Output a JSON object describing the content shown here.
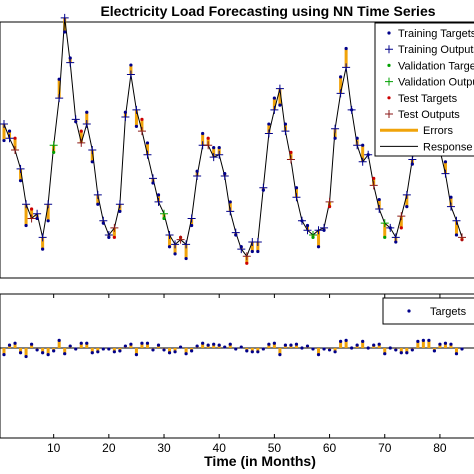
{
  "chart_data": [
    {
      "type": "line",
      "title": "Electricity Load Forecasting using NN Time Series",
      "xlim": [
        1,
        84
      ],
      "ylim": [
        0,
        1
      ],
      "grid": false,
      "legend_placement": "top-right",
      "colors": {
        "training_targets": "#00008B",
        "training_outputs": "#00008B",
        "validation_targets": "#00A000",
        "validation_outputs": "#00A000",
        "test_targets": "#CC0000",
        "test_outputs": "#8B1A1A",
        "errors": "#F0A30A",
        "response": "#000000"
      },
      "legend": [
        {
          "key": "training_targets",
          "label": "Training Targets",
          "marker": "dot"
        },
        {
          "key": "training_outputs",
          "label": "Training Outputs",
          "marker": "plus"
        },
        {
          "key": "validation_targets",
          "label": "Validation Targets",
          "marker": "dot"
        },
        {
          "key": "validation_outputs",
          "label": "Validation Outputs",
          "marker": "plus"
        },
        {
          "key": "test_targets",
          "label": "Test Targets",
          "marker": "dot"
        },
        {
          "key": "test_outputs",
          "label": "Test Outputs",
          "marker": "plus"
        },
        {
          "key": "errors",
          "label": "Errors",
          "marker": "thick-line"
        },
        {
          "key": "response",
          "label": "Response",
          "marker": "line"
        }
      ],
      "x": [
        1,
        2,
        3,
        4,
        5,
        6,
        7,
        8,
        9,
        10,
        11,
        12,
        13,
        14,
        15,
        16,
        17,
        18,
        19,
        20,
        21,
        22,
        23,
        24,
        25,
        26,
        27,
        28,
        29,
        30,
        31,
        32,
        33,
        34,
        35,
        36,
        37,
        38,
        39,
        40,
        41,
        42,
        43,
        44,
        45,
        46,
        47,
        48,
        49,
        50,
        51,
        52,
        53,
        54,
        55,
        56,
        57,
        58,
        59,
        60,
        61,
        62,
        63,
        64,
        65,
        66,
        67,
        68,
        69,
        70,
        71,
        72,
        73,
        74,
        75,
        76,
        77,
        78,
        79,
        80,
        81,
        82,
        83,
        84
      ],
      "series": [
        {
          "name": "Targets",
          "values": [
            0.54,
            0.58,
            0.55,
            0.37,
            0.18,
            0.25,
            0.21,
            0.08,
            0.2,
            0.49,
            0.8,
            1.0,
            0.89,
            0.62,
            0.58,
            0.66,
            0.45,
            0.27,
            0.19,
            0.13,
            0.13,
            0.24,
            0.66,
            0.86,
            0.6,
            0.63,
            0.53,
            0.36,
            0.31,
            0.21,
            0.09,
            0.06,
            0.13,
            0.04,
            0.18,
            0.41,
            0.57,
            0.55,
            0.51,
            0.51,
            0.4,
            0.28,
            0.14,
            0.09,
            0.02,
            0.07,
            0.07,
            0.33,
            0.61,
            0.72,
            0.69,
            0.61,
            0.49,
            0.34,
            0.2,
            0.18,
            0.13,
            0.09,
            0.16,
            0.26,
            0.55,
            0.81,
            0.93,
            0.67,
            0.55,
            0.52,
            0.48,
            0.38,
            0.29,
            0.13,
            0.17,
            0.11,
            0.17,
            0.26,
            0.44,
            0.67,
            0.76,
            0.78,
            0.62,
            0.54,
            0.45,
            0.3,
            0.14,
            0.12
          ]
        },
        {
          "name": "Outputs",
          "values": [
            0.61,
            0.55,
            0.5,
            0.42,
            0.27,
            0.21,
            0.23,
            0.13,
            0.27,
            0.52,
            0.72,
            1.06,
            0.87,
            0.63,
            0.53,
            0.61,
            0.5,
            0.31,
            0.2,
            0.14,
            0.17,
            0.27,
            0.64,
            0.82,
            0.67,
            0.58,
            0.48,
            0.38,
            0.28,
            0.23,
            0.14,
            0.1,
            0.12,
            0.1,
            0.21,
            0.39,
            0.52,
            0.52,
            0.47,
            0.48,
            0.39,
            0.24,
            0.15,
            0.08,
            0.05,
            0.11,
            0.11,
            0.34,
            0.57,
            0.67,
            0.76,
            0.58,
            0.46,
            0.3,
            0.2,
            0.16,
            0.14,
            0.16,
            0.17,
            0.28,
            0.59,
            0.74,
            0.85,
            0.67,
            0.52,
            0.45,
            0.48,
            0.35,
            0.25,
            0.19,
            0.17,
            0.13,
            0.22,
            0.31,
            0.46,
            0.6,
            0.68,
            0.7,
            0.65,
            0.5,
            0.4,
            0.26,
            0.2,
            0.13
          ]
        }
      ],
      "test_points_x": [
        3,
        6,
        15,
        21,
        26,
        33,
        38,
        45,
        53,
        60,
        68,
        73,
        80,
        84
      ],
      "validation_points_x": [
        10,
        30,
        57,
        70
      ]
    },
    {
      "type": "bar",
      "ylim": [
        -1,
        1
      ],
      "xticks": [
        "10",
        "20",
        "30",
        "40",
        "50",
        "60",
        "70",
        "80"
      ],
      "legend": [
        {
          "key": "targets",
          "label": "Targets",
          "marker": "dot"
        }
      ],
      "legend_placement": "top-right",
      "errors_from": "series difference (Targets - Outputs)"
    }
  ]
}
